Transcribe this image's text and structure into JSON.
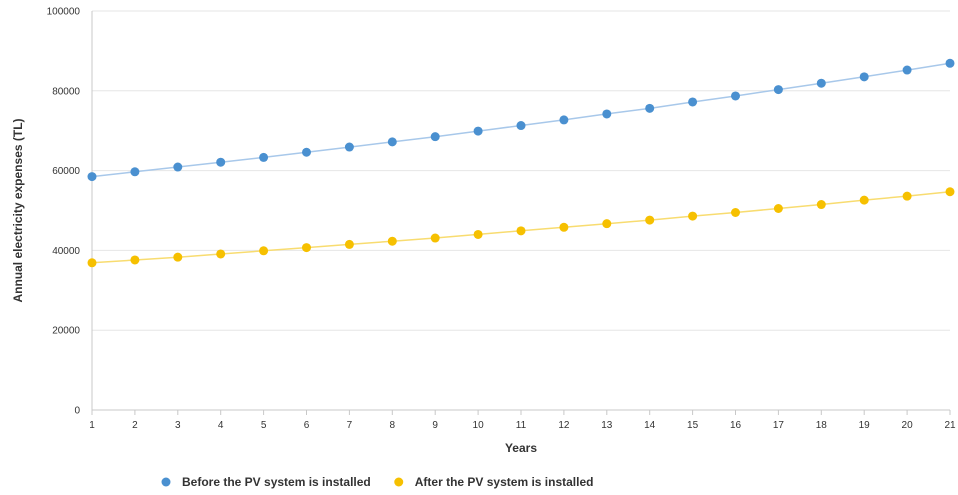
{
  "chart_data": {
    "type": "line",
    "xlabel": "Years",
    "ylabel": "Annual electricity expenses (TL)",
    "categories": [
      "1",
      "2",
      "3",
      "4",
      "5",
      "6",
      "7",
      "8",
      "9",
      "10",
      "11",
      "12",
      "13",
      "14",
      "15",
      "16",
      "17",
      "18",
      "19",
      "20",
      "21"
    ],
    "yticks": [
      "0",
      "20000",
      "40000",
      "60000",
      "80000",
      "100000"
    ],
    "ylim": [
      0,
      100000
    ],
    "grid": "horizontal",
    "legend_position": "bottom-center",
    "series": [
      {
        "name": "Before the PV system is installed",
        "color": "#4a90d0",
        "line_color": "#a8c8ea",
        "values": [
          58500,
          59700,
          60900,
          62100,
          63300,
          64600,
          65900,
          67200,
          68500,
          69900,
          71300,
          72700,
          74200,
          75600,
          77200,
          78700,
          80300,
          81900,
          83500,
          85200,
          86900
        ]
      },
      {
        "name": "After the PV system is installed",
        "color": "#f6c000",
        "line_color": "#f8dc70",
        "values": [
          36900,
          37600,
          38300,
          39100,
          39900,
          40700,
          41500,
          42300,
          43100,
          44000,
          44900,
          45800,
          46700,
          47600,
          48600,
          49500,
          50500,
          51500,
          52600,
          53600,
          54700
        ]
      }
    ]
  }
}
